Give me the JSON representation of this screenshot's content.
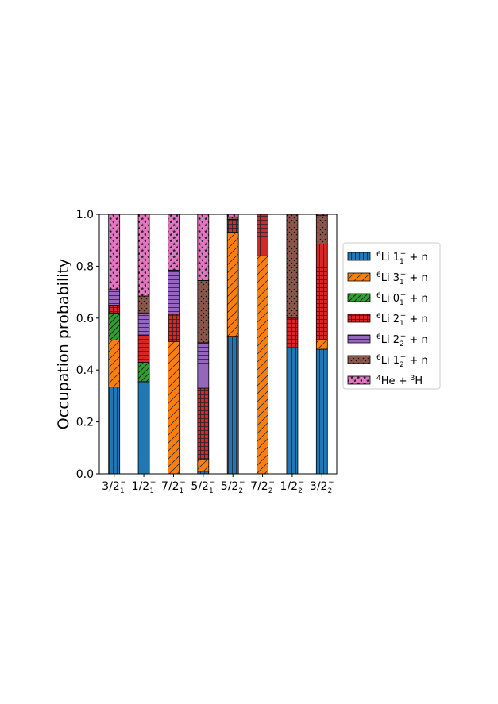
{
  "chart_data": {
    "type": "bar",
    "stacked": true,
    "ylabel": "Occupation probability",
    "ylim": [
      0,
      1.0
    ],
    "yticks": [
      "0.0",
      "0.2",
      "0.4",
      "0.6",
      "0.8",
      "1.0"
    ],
    "grid": false,
    "legend_position": "right",
    "categories": [
      {
        "j": "3/2",
        "sub": "1",
        "sup": "−"
      },
      {
        "j": "1/2",
        "sub": "1",
        "sup": "−"
      },
      {
        "j": "7/2",
        "sub": "1",
        "sup": "−"
      },
      {
        "j": "5/2",
        "sub": "1",
        "sup": "−"
      },
      {
        "j": "5/2",
        "sub": "2",
        "sup": "−"
      },
      {
        "j": "7/2",
        "sub": "2",
        "sup": "−"
      },
      {
        "j": "1/2",
        "sub": "2",
        "sup": "−"
      },
      {
        "j": "3/2",
        "sub": "2",
        "sup": "−"
      }
    ],
    "series": [
      {
        "label": {
          "pre": "6",
          "base": "Li 1",
          "sub": "1",
          "sup": "+",
          "post": " + n"
        },
        "color": "#1f77b4",
        "pattern": "vlines",
        "values": [
          0.335,
          0.355,
          0.0,
          0.01,
          0.53,
          0.0,
          0.485,
          0.48
        ]
      },
      {
        "label": {
          "pre": "6",
          "base": "Li 3",
          "sub": "1",
          "sup": "+",
          "post": " + n"
        },
        "color": "#ff7f0e",
        "pattern": "diag",
        "values": [
          0.18,
          0.0,
          0.51,
          0.045,
          0.4,
          0.84,
          0.0,
          0.035
        ]
      },
      {
        "label": {
          "pre": "6",
          "base": "Li 0",
          "sub": "1",
          "sup": "+",
          "post": " + n"
        },
        "color": "#2ca02c",
        "pattern": "diag-dense",
        "values": [
          0.105,
          0.075,
          0.0,
          0.0,
          0.0,
          0.0,
          0.0,
          0.0
        ]
      },
      {
        "label": {
          "pre": "6",
          "base": "Li 2",
          "sub": "1",
          "sup": "+",
          "post": " + n"
        },
        "color": "#d62728",
        "pattern": "grid",
        "values": [
          0.03,
          0.105,
          0.105,
          0.275,
          0.05,
          0.16,
          0.115,
          0.37
        ]
      },
      {
        "label": {
          "pre": "6",
          "base": "Li 2",
          "sub": "2",
          "sup": "+",
          "post": " + n"
        },
        "color": "#9467bd",
        "pattern": "hlines",
        "values": [
          0.06,
          0.085,
          0.17,
          0.175,
          0.0,
          0.0,
          0.0,
          0.0
        ]
      },
      {
        "label": {
          "pre": "6",
          "base": "Li 1",
          "sub": "2",
          "sup": "+",
          "post": " + n"
        },
        "color": "#8c564b",
        "pattern": "dots",
        "values": [
          0.0,
          0.065,
          0.0,
          0.24,
          0.01,
          0.0,
          0.4,
          0.11
        ]
      },
      {
        "label": {
          "pre": "4",
          "base": "He + ",
          "pre2": "3",
          "base2": "H"
        },
        "color": "#e377c2",
        "pattern": "stars",
        "values": [
          0.29,
          0.315,
          0.215,
          0.255,
          0.01,
          0.0,
          0.0,
          0.005
        ]
      }
    ]
  }
}
